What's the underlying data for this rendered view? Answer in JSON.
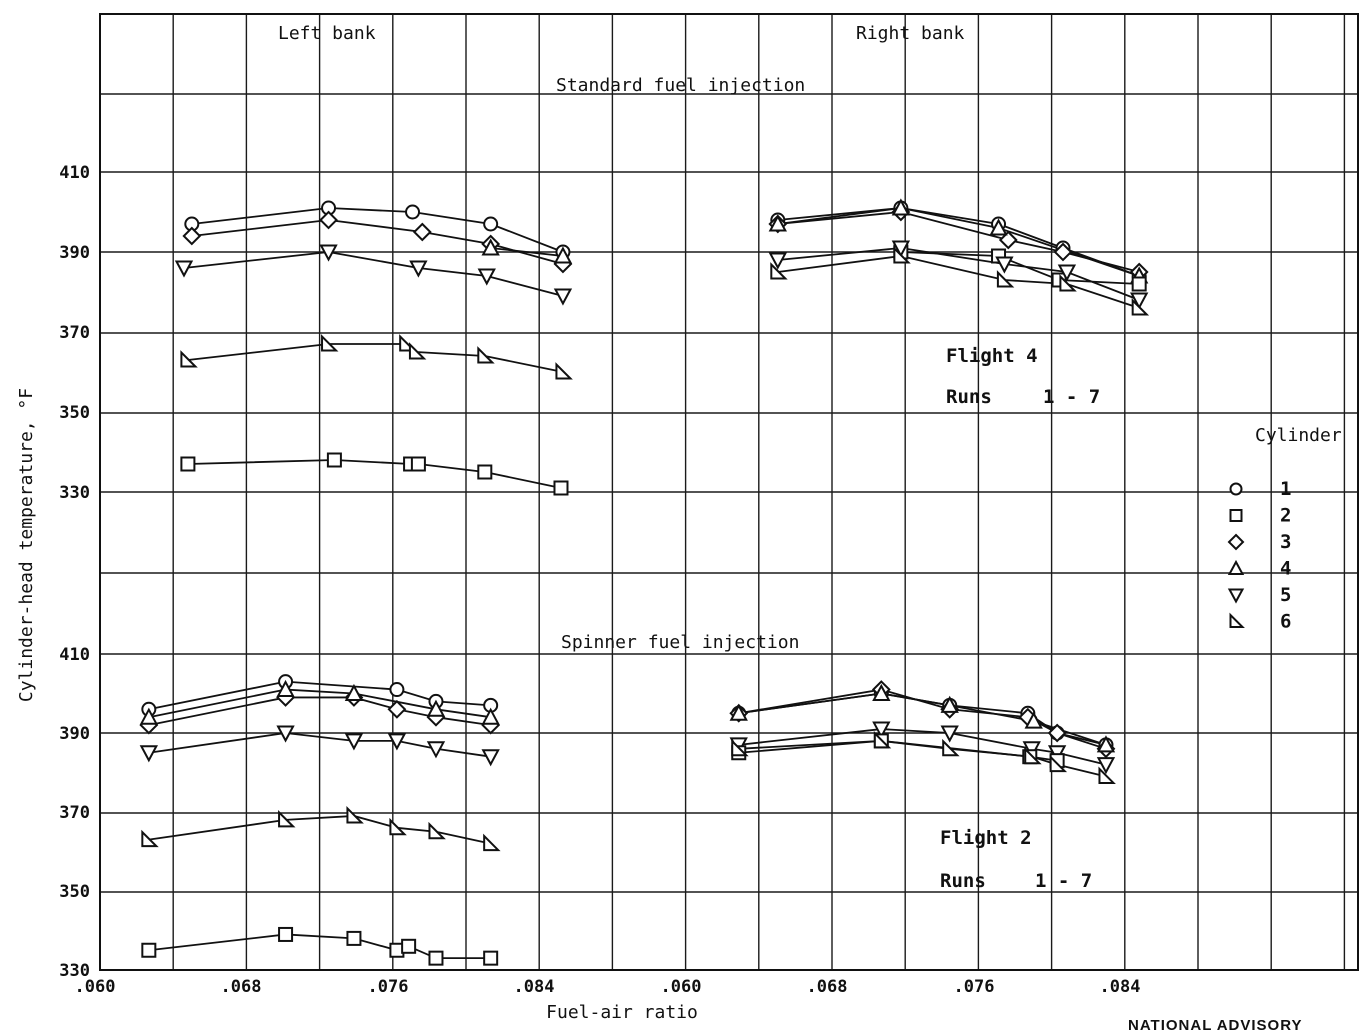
{
  "chart_data": {
    "type": "scatter",
    "xlabel": "Fuel-air ratio",
    "ylabel": "Cylinder-head temperature, °F",
    "x_ticks": [
      ".060",
      ".068",
      ".076",
      ".084",
      ".060",
      ".068",
      ".076",
      ".084"
    ],
    "y_ticks_top": [
      "410",
      "390",
      "370",
      "350",
      "330"
    ],
    "y_ticks_bottom": [
      "410",
      "390",
      "370",
      "350",
      "330"
    ],
    "bank_labels": {
      "left": "Left bank",
      "right": "Right bank"
    },
    "legend": {
      "title": "Cylinder",
      "entries": [
        {
          "label": "1",
          "marker": "circle"
        },
        {
          "label": "2",
          "marker": "square"
        },
        {
          "label": "3",
          "marker": "diamond"
        },
        {
          "label": "4",
          "marker": "triangle-up"
        },
        {
          "label": "5",
          "marker": "triangle-down"
        },
        {
          "label": "6",
          "marker": "triangle-right"
        }
      ]
    },
    "panels": [
      {
        "id": "standard",
        "title": "Standard fuel injection",
        "flight": "Flight  4",
        "runs_label": "Runs",
        "runs_value": "1 - 7",
        "ylim": [
          330,
          430
        ],
        "banks": [
          {
            "bank": "left",
            "xlim": [
              0.06,
              0.09
            ],
            "series": [
              {
                "cyl": "1",
                "points": [
                  [
                    0.0647,
                    397
                  ],
                  [
                    0.0717,
                    401
                  ],
                  [
                    0.076,
                    400
                  ],
                  [
                    0.08,
                    397
                  ],
                  [
                    0.0837,
                    390
                  ]
                ]
              },
              {
                "cyl": "3",
                "points": [
                  [
                    0.0647,
                    394
                  ],
                  [
                    0.0717,
                    398
                  ],
                  [
                    0.0765,
                    395
                  ],
                  [
                    0.08,
                    392
                  ],
                  [
                    0.0837,
                    387
                  ]
                ]
              },
              {
                "cyl": "4",
                "points": [
                  [
                    0.08,
                    391
                  ],
                  [
                    0.0837,
                    389
                  ]
                ]
              },
              {
                "cyl": "5",
                "points": [
                  [
                    0.0643,
                    386
                  ],
                  [
                    0.0717,
                    390
                  ],
                  [
                    0.0763,
                    386
                  ],
                  [
                    0.0798,
                    384
                  ],
                  [
                    0.0837,
                    379
                  ]
                ]
              },
              {
                "cyl": "6",
                "points": [
                  [
                    0.0645,
                    363
                  ],
                  [
                    0.0717,
                    367
                  ],
                  [
                    0.0757,
                    367
                  ],
                  [
                    0.0762,
                    365
                  ],
                  [
                    0.0797,
                    364
                  ],
                  [
                    0.0837,
                    360
                  ]
                ]
              },
              {
                "cyl": "2",
                "points": [
                  [
                    0.0645,
                    337
                  ],
                  [
                    0.072,
                    338
                  ],
                  [
                    0.0759,
                    337
                  ],
                  [
                    0.0763,
                    337
                  ],
                  [
                    0.0797,
                    335
                  ],
                  [
                    0.0836,
                    331
                  ]
                ]
              }
            ]
          },
          {
            "bank": "right",
            "xlim": [
              0.06,
              0.09
            ],
            "series": [
              {
                "cyl": "1",
                "points": [
                  [
                    0.0647,
                    398
                  ],
                  [
                    0.071,
                    401
                  ],
                  [
                    0.076,
                    397
                  ],
                  [
                    0.0793,
                    391
                  ],
                  [
                    0.0832,
                    384
                  ]
                ]
              },
              {
                "cyl": "3",
                "points": [
                  [
                    0.0647,
                    397
                  ],
                  [
                    0.071,
                    400
                  ],
                  [
                    0.0765,
                    393
                  ],
                  [
                    0.0793,
                    390
                  ],
                  [
                    0.0832,
                    385
                  ]
                ]
              },
              {
                "cyl": "4",
                "points": [
                  [
                    0.0647,
                    397
                  ],
                  [
                    0.071,
                    401
                  ],
                  [
                    0.076,
                    396
                  ],
                  [
                    0.0832,
                    384
                  ]
                ]
              },
              {
                "cyl": "2",
                "points": [
                  [
                    0.071,
                    390
                  ],
                  [
                    0.076,
                    389
                  ],
                  [
                    0.0791,
                    383
                  ],
                  [
                    0.0832,
                    382
                  ]
                ]
              },
              {
                "cyl": "5",
                "points": [
                  [
                    0.0647,
                    388
                  ],
                  [
                    0.071,
                    391
                  ],
                  [
                    0.0763,
                    387
                  ],
                  [
                    0.0795,
                    385
                  ],
                  [
                    0.0832,
                    378
                  ]
                ]
              },
              {
                "cyl": "6",
                "points": [
                  [
                    0.0647,
                    385
                  ],
                  [
                    0.071,
                    389
                  ],
                  [
                    0.0763,
                    383
                  ],
                  [
                    0.0795,
                    382
                  ],
                  [
                    0.0832,
                    376
                  ]
                ]
              }
            ]
          }
        ]
      },
      {
        "id": "spinner",
        "title": "Spinner fuel injection",
        "flight": "Flight  2",
        "runs_label": "Runs",
        "runs_value": "1 - 7",
        "ylim": [
          330,
          420
        ],
        "banks": [
          {
            "bank": "left",
            "xlim": [
              0.06,
              0.09
            ],
            "series": [
              {
                "cyl": "1",
                "points": [
                  [
                    0.0625,
                    396
                  ],
                  [
                    0.0695,
                    403
                  ],
                  [
                    0.0752,
                    401
                  ],
                  [
                    0.0772,
                    398
                  ],
                  [
                    0.08,
                    397
                  ]
                ]
              },
              {
                "cyl": "3",
                "points": [
                  [
                    0.0625,
                    392
                  ],
                  [
                    0.0695,
                    399
                  ],
                  [
                    0.073,
                    399
                  ],
                  [
                    0.0752,
                    396
                  ],
                  [
                    0.0772,
                    394
                  ],
                  [
                    0.08,
                    392
                  ]
                ]
              },
              {
                "cyl": "4",
                "points": [
                  [
                    0.0625,
                    394
                  ],
                  [
                    0.0695,
                    401
                  ],
                  [
                    0.073,
                    400
                  ],
                  [
                    0.0772,
                    396
                  ],
                  [
                    0.08,
                    394
                  ]
                ]
              },
              {
                "cyl": "5",
                "points": [
                  [
                    0.0625,
                    385
                  ],
                  [
                    0.0695,
                    390
                  ],
                  [
                    0.073,
                    388
                  ],
                  [
                    0.0752,
                    388
                  ],
                  [
                    0.0772,
                    386
                  ],
                  [
                    0.08,
                    384
                  ]
                ]
              },
              {
                "cyl": "6",
                "points": [
                  [
                    0.0625,
                    363
                  ],
                  [
                    0.0695,
                    368
                  ],
                  [
                    0.073,
                    369
                  ],
                  [
                    0.0752,
                    366
                  ],
                  [
                    0.0772,
                    365
                  ],
                  [
                    0.08,
                    362
                  ]
                ]
              },
              {
                "cyl": "2",
                "points": [
                  [
                    0.0625,
                    335
                  ],
                  [
                    0.0695,
                    339
                  ],
                  [
                    0.073,
                    338
                  ],
                  [
                    0.0752,
                    335
                  ],
                  [
                    0.0758,
                    336
                  ],
                  [
                    0.0772,
                    333
                  ],
                  [
                    0.08,
                    333
                  ]
                ]
              }
            ]
          },
          {
            "bank": "right",
            "xlim": [
              0.06,
              0.09
            ],
            "series": [
              {
                "cyl": "1",
                "points": [
                  [
                    0.0627,
                    395
                  ],
                  [
                    0.07,
                    400
                  ],
                  [
                    0.0735,
                    397
                  ],
                  [
                    0.0775,
                    395
                  ],
                  [
                    0.079,
                    390
                  ],
                  [
                    0.0815,
                    387
                  ]
                ]
              },
              {
                "cyl": "3",
                "points": [
                  [
                    0.0627,
                    395
                  ],
                  [
                    0.07,
                    401
                  ],
                  [
                    0.0735,
                    396
                  ],
                  [
                    0.0775,
                    394
                  ],
                  [
                    0.079,
                    390
                  ],
                  [
                    0.0815,
                    386
                  ]
                ]
              },
              {
                "cyl": "4",
                "points": [
                  [
                    0.0627,
                    395
                  ],
                  [
                    0.07,
                    400
                  ],
                  [
                    0.0735,
                    397
                  ],
                  [
                    0.0778,
                    393
                  ],
                  [
                    0.0815,
                    387
                  ]
                ]
              },
              {
                "cyl": "5",
                "points": [
                  [
                    0.0627,
                    387
                  ],
                  [
                    0.07,
                    391
                  ],
                  [
                    0.0735,
                    390
                  ],
                  [
                    0.0777,
                    386
                  ],
                  [
                    0.079,
                    385
                  ],
                  [
                    0.0815,
                    382
                  ]
                ]
              },
              {
                "cyl": "2",
                "points": [
                  [
                    0.0627,
                    385
                  ],
                  [
                    0.07,
                    388
                  ],
                  [
                    0.0776,
                    384
                  ],
                  [
                    0.079,
                    383
                  ]
                ]
              },
              {
                "cyl": "6",
                "points": [
                  [
                    0.0627,
                    386
                  ],
                  [
                    0.07,
                    388
                  ],
                  [
                    0.0735,
                    386
                  ],
                  [
                    0.0777,
                    384
                  ],
                  [
                    0.079,
                    382
                  ],
                  [
                    0.0815,
                    379
                  ]
                ]
              }
            ]
          }
        ]
      }
    ]
  },
  "footer": {
    "text": "NATIONAL ADVISORY"
  }
}
